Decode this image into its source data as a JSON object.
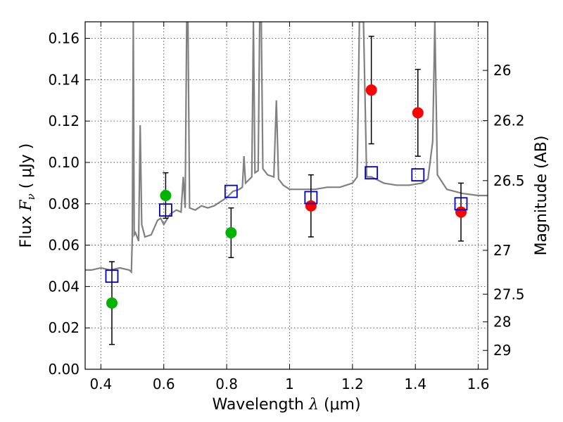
{
  "chart_data": {
    "type": "scatter",
    "xlabel_prefix": "Wavelength",
    "xlabel_symbol": "λ",
    "xlabel_unit": "(μm)",
    "ylabel_prefix": "Flux",
    "ylabel_symbol": "F",
    "ylabel_subscript": "ν",
    "ylabel_unit": "( μJy )",
    "y2label": "Magnitude (AB)",
    "xlim": [
      0.35,
      1.63
    ],
    "ylim": [
      0.0,
      0.168
    ],
    "grid": true,
    "x_ticks": [
      0.4,
      0.6,
      0.8,
      1.0,
      1.2,
      1.4,
      1.6
    ],
    "x_tick_labels": [
      "0.4",
      "0.6",
      "0.8",
      "1",
      "1.2",
      "1.4",
      "1.6"
    ],
    "y_ticks": [
      0.0,
      0.02,
      0.04,
      0.06,
      0.08,
      0.1,
      0.12,
      0.14,
      0.16
    ],
    "y_tick_labels": [
      "0.00",
      "0.02",
      "0.04",
      "0.06",
      "0.08",
      "0.10",
      "0.12",
      "0.14",
      "0.16"
    ],
    "y2_ticks": [
      {
        "label": "26",
        "flux": 0.1445
      },
      {
        "label": "26.2",
        "flux": 0.1202
      },
      {
        "label": "26.5",
        "flux": 0.0912
      },
      {
        "label": "27",
        "flux": 0.0575
      },
      {
        "label": "27.5",
        "flux": 0.0363
      },
      {
        "label": "28",
        "flux": 0.0229
      },
      {
        "label": "29",
        "flux": 0.0091
      }
    ],
    "series": [
      {
        "marker": "circle",
        "color": "#00b400",
        "points": [
          {
            "x": 0.435,
            "y": 0.032,
            "err": 0.02
          },
          {
            "x": 0.606,
            "y": 0.084,
            "err": 0.011
          },
          {
            "x": 0.814,
            "y": 0.066,
            "err": 0.012
          }
        ]
      },
      {
        "marker": "circle",
        "color": "#ff0000",
        "points": [
          {
            "x": 1.068,
            "y": 0.079,
            "err": 0.015
          },
          {
            "x": 1.26,
            "y": 0.135,
            "err": 0.026
          },
          {
            "x": 1.408,
            "y": 0.124,
            "err": 0.021
          },
          {
            "x": 1.545,
            "y": 0.076,
            "err": 0.014
          }
        ]
      },
      {
        "marker": "open-square",
        "color": "#0000cc",
        "points": [
          {
            "x": 0.435,
            "y": 0.045
          },
          {
            "x": 0.606,
            "y": 0.077
          },
          {
            "x": 0.814,
            "y": 0.086
          },
          {
            "x": 1.068,
            "y": 0.083
          },
          {
            "x": 1.26,
            "y": 0.095
          },
          {
            "x": 1.408,
            "y": 0.094
          },
          {
            "x": 1.545,
            "y": 0.08
          }
        ]
      }
    ],
    "spectrum": {
      "color": "#808080",
      "points": [
        [
          0.35,
          0.048
        ],
        [
          0.37,
          0.048
        ],
        [
          0.4,
          0.049
        ],
        [
          0.43,
          0.048
        ],
        [
          0.46,
          0.049
        ],
        [
          0.49,
          0.048
        ],
        [
          0.497,
          0.047
        ],
        [
          0.5,
          0.064
        ],
        [
          0.503,
          0.168
        ],
        [
          0.506,
          0.065
        ],
        [
          0.51,
          0.066
        ],
        [
          0.52,
          0.062
        ],
        [
          0.525,
          0.118
        ],
        [
          0.53,
          0.07
        ],
        [
          0.54,
          0.064
        ],
        [
          0.56,
          0.065
        ],
        [
          0.58,
          0.072
        ],
        [
          0.59,
          0.073
        ],
        [
          0.6,
          0.07
        ],
        [
          0.62,
          0.075
        ],
        [
          0.64,
          0.077
        ],
        [
          0.655,
          0.076
        ],
        [
          0.662,
          0.093
        ],
        [
          0.668,
          0.078
        ],
        [
          0.673,
          0.168
        ],
        [
          0.677,
          0.168
        ],
        [
          0.682,
          0.078
        ],
        [
          0.7,
          0.077
        ],
        [
          0.72,
          0.079
        ],
        [
          0.74,
          0.078
        ],
        [
          0.76,
          0.079
        ],
        [
          0.78,
          0.081
        ],
        [
          0.8,
          0.083
        ],
        [
          0.82,
          0.086
        ],
        [
          0.84,
          0.087
        ],
        [
          0.85,
          0.088
        ],
        [
          0.855,
          0.103
        ],
        [
          0.86,
          0.09
        ],
        [
          0.88,
          0.093
        ],
        [
          0.885,
          0.168
        ],
        [
          0.89,
          0.095
        ],
        [
          0.9,
          0.096
        ],
        [
          0.905,
          0.168
        ],
        [
          0.91,
          0.168
        ],
        [
          0.915,
          0.097
        ],
        [
          0.93,
          0.094
        ],
        [
          0.95,
          0.093
        ],
        [
          0.958,
          0.13
        ],
        [
          0.965,
          0.092
        ],
        [
          0.98,
          0.089
        ],
        [
          1.0,
          0.087
        ],
        [
          1.04,
          0.087
        ],
        [
          1.08,
          0.087
        ],
        [
          1.12,
          0.088
        ],
        [
          1.16,
          0.088
        ],
        [
          1.2,
          0.09
        ],
        [
          1.215,
          0.093
        ],
        [
          1.222,
          0.168
        ],
        [
          1.235,
          0.168
        ],
        [
          1.245,
          0.093
        ],
        [
          1.26,
          0.093
        ],
        [
          1.3,
          0.09
        ],
        [
          1.34,
          0.089
        ],
        [
          1.38,
          0.089
        ],
        [
          1.42,
          0.09
        ],
        [
          1.44,
          0.092
        ],
        [
          1.455,
          0.11
        ],
        [
          1.462,
          0.168
        ],
        [
          1.47,
          0.094
        ],
        [
          1.5,
          0.087
        ],
        [
          1.55,
          0.085
        ],
        [
          1.6,
          0.084
        ],
        [
          1.63,
          0.084
        ]
      ]
    }
  }
}
